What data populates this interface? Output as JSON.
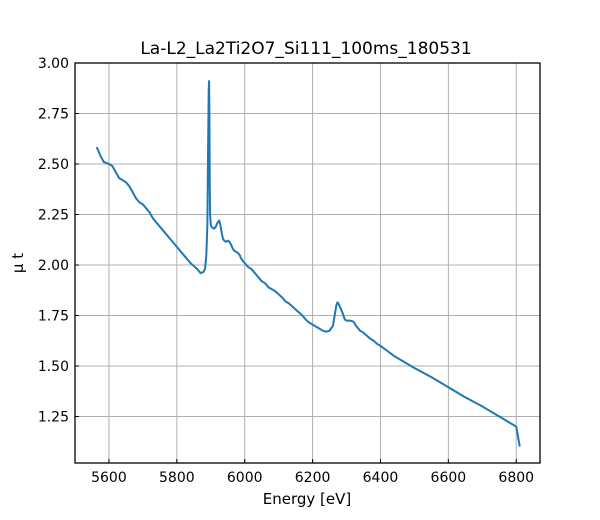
{
  "chart_data": {
    "type": "line",
    "title": "La-L2_La2Ti2O7_Si111_100ms_180531",
    "xlabel": "Energy [eV]",
    "ylabel": "μ t",
    "xlim": [
      5500,
      6870
    ],
    "ylim": [
      1.02,
      3.0
    ],
    "xticks": [
      5600,
      5800,
      6000,
      6200,
      6400,
      6600,
      6800
    ],
    "xtick_labels": [
      "5600",
      "5800",
      "6000",
      "6200",
      "6400",
      "6600",
      "6800"
    ],
    "yticks": [
      1.25,
      1.5,
      1.75,
      2.0,
      2.25,
      2.5,
      2.75,
      3.0
    ],
    "ytick_labels": [
      "1.25",
      "1.50",
      "1.75",
      "2.00",
      "2.25",
      "2.50",
      "2.75",
      "3.00"
    ],
    "grid": true,
    "color": "#1f77b4",
    "series": [
      {
        "x": [
          5565,
          5575,
          5585,
          5600,
          5610,
          5620,
          5630,
          5640,
          5650,
          5660,
          5670,
          5680,
          5690,
          5700,
          5710,
          5720,
          5730,
          5740,
          5760,
          5780,
          5800,
          5820,
          5840,
          5860,
          5870,
          5878,
          5883,
          5887,
          5890,
          5892,
          5894,
          5895,
          5896,
          5897,
          5898,
          5900,
          5902,
          5905,
          5910,
          5915,
          5920,
          5925,
          5928,
          5932,
          5936,
          5940,
          5945,
          5950,
          5955,
          5960,
          5965,
          5970,
          5975,
          5980,
          5985,
          5990,
          6000,
          6010,
          6020,
          6030,
          6040,
          6050,
          6060,
          6070,
          6080,
          6090,
          6100,
          6110,
          6120,
          6130,
          6140,
          6150,
          6160,
          6170,
          6180,
          6190,
          6200,
          6210,
          6220,
          6230,
          6240,
          6250,
          6260,
          6265,
          6270,
          6273,
          6276,
          6280,
          6284,
          6290,
          6295,
          6300,
          6305,
          6310,
          6320,
          6330,
          6340,
          6350,
          6360,
          6370,
          6380,
          6390,
          6400,
          6420,
          6440,
          6460,
          6480,
          6500,
          6550,
          6600,
          6650,
          6700,
          6750,
          6800,
          6810
        ],
        "y": [
          2.58,
          2.54,
          2.51,
          2.5,
          2.49,
          2.46,
          2.43,
          2.42,
          2.41,
          2.39,
          2.36,
          2.33,
          2.31,
          2.3,
          2.28,
          2.26,
          2.23,
          2.21,
          2.17,
          2.13,
          2.09,
          2.05,
          2.01,
          1.98,
          1.96,
          1.965,
          1.98,
          2.05,
          2.2,
          2.55,
          2.87,
          2.91,
          2.75,
          2.4,
          2.25,
          2.2,
          2.19,
          2.185,
          2.18,
          2.19,
          2.21,
          2.22,
          2.2,
          2.16,
          2.13,
          2.12,
          2.115,
          2.12,
          2.115,
          2.1,
          2.08,
          2.07,
          2.065,
          2.06,
          2.05,
          2.03,
          2.01,
          1.99,
          1.98,
          1.96,
          1.94,
          1.92,
          1.91,
          1.89,
          1.88,
          1.87,
          1.855,
          1.84,
          1.82,
          1.81,
          1.795,
          1.78,
          1.765,
          1.75,
          1.73,
          1.715,
          1.705,
          1.695,
          1.685,
          1.675,
          1.67,
          1.675,
          1.7,
          1.75,
          1.8,
          1.815,
          1.81,
          1.795,
          1.78,
          1.755,
          1.73,
          1.725,
          1.725,
          1.725,
          1.72,
          1.695,
          1.675,
          1.665,
          1.65,
          1.635,
          1.625,
          1.61,
          1.6,
          1.575,
          1.55,
          1.53,
          1.51,
          1.49,
          1.445,
          1.395,
          1.345,
          1.3,
          1.25,
          1.2,
          1.105
        ]
      }
    ]
  }
}
